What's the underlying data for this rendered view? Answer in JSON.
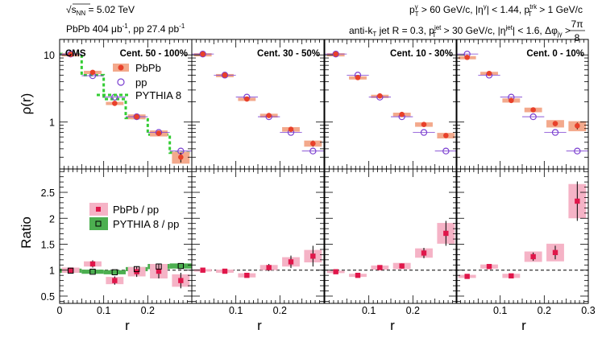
{
  "header": {
    "energy": {
      "sqrt": "√",
      "s": "s",
      "sub": "NN",
      "rest": " = 5.02 TeV"
    },
    "lumi": {
      "a": "PbPb 404 μb",
      "b": "-1",
      "c": ", pp 27.4 pb",
      "d": "-1"
    },
    "photon_cut": {
      "a": "p",
      "a_sup": "γ",
      "a_sub": "T",
      "b": " > 60 GeV/c, |η",
      "b_sup": "γ",
      "c": "| < 1.44, p",
      "c_sup": "trk",
      "c_sub": "T",
      "d": " > 1 GeV/c"
    },
    "jet_cut": {
      "a": "anti-k",
      "a_sub": "T",
      "b": " jet R = 0.3, p",
      "b_sup": "jet",
      "b_sub": "T",
      "c": " > 30 GeV/c, |η",
      "c_sup": "jet",
      "d": "| < 1.6, Δφ",
      "d_sub": "jγ",
      "e": " > ",
      "frac_num": "7π",
      "frac_den": "8"
    }
  },
  "cms_label": "CMS",
  "axis_labels": {
    "top_y": "ρ(r)",
    "bottom_y": "Ratio",
    "x": "r"
  },
  "legend_top": {
    "pbpb": "PbPb",
    "pp": "pp",
    "pythia": "PYTHIA 8"
  },
  "legend_bottom": {
    "pbpb_pp": "PbPb / pp",
    "pythia_pp": "PYTHIA 8 / pp"
  },
  "colors": {
    "pbpb": "#e8402a",
    "pbpb_band": "#f3a98c",
    "pp": "#7b3fd0",
    "pythia": "#33cc33",
    "ratio": "#e0164a",
    "ratio_band": "#f5b3c6",
    "pythia_ratio_band": "#4caf50"
  },
  "chart_data": {
    "type": "scatter",
    "x_label": "r",
    "x_range": [
      0,
      0.3
    ],
    "r_centers": [
      0.025,
      0.075,
      0.125,
      0.175,
      0.225,
      0.275
    ],
    "top_ylabel": "ρ(r)",
    "top_yscale": "log",
    "top_ylim": [
      0.2,
      17
    ],
    "top_yticks": [
      "1",
      "10"
    ],
    "bottom_ylabel": "Ratio",
    "bottom_ylim": [
      0.36,
      2.95
    ],
    "bottom_yticks": [
      "0.5",
      "1",
      "1.5",
      "2",
      "2.5"
    ],
    "x_tick_labels": {
      "panel1": [
        "0",
        "0.1",
        "0.2"
      ],
      "panel2": [
        "0.1",
        "0.2"
      ],
      "panel3": [
        "0.1",
        "0.2"
      ],
      "panel4": [
        "0.1",
        "0.2",
        "0.3"
      ]
    },
    "pythia_rho": [
      10.3,
      5.0,
      2.2,
      1.15,
      0.65,
      0.35
    ],
    "pythia_ratio": [
      0.99,
      0.97,
      0.96,
      1.02,
      1.07,
      1.08
    ],
    "pythia_ratio_err": [
      0.04,
      0.04,
      0.04,
      0.04,
      0.05,
      0.05
    ],
    "panels": [
      {
        "label": "Cent. 50 - 100%",
        "pbpb": [
          10.2,
          5.5,
          1.9,
          1.2,
          0.68,
          0.3
        ],
        "pbpb_stat": [
          0.3,
          0.2,
          0.1,
          0.08,
          0.06,
          0.05
        ],
        "pbpb_sys": [
          0.4,
          0.3,
          0.1,
          0.1,
          0.07,
          0.06
        ],
        "pp": [
          10.3,
          4.9,
          2.35,
          1.2,
          0.7,
          0.37
        ],
        "ratio": [
          1.0,
          1.12,
          0.8,
          0.97,
          0.98,
          0.8
        ],
        "ratio_stat": [
          0.05,
          0.07,
          0.08,
          0.1,
          0.14,
          0.15
        ],
        "ratio_sys": [
          0.05,
          0.05,
          0.07,
          0.09,
          0.14,
          0.12
        ]
      },
      {
        "label": "Cent. 30 - 50%",
        "pbpb": [
          10.3,
          5.0,
          2.2,
          1.25,
          0.78,
          0.48
        ],
        "pbpb_stat": [
          0.3,
          0.2,
          0.1,
          0.07,
          0.06,
          0.05
        ],
        "pbpb_sys": [
          0.3,
          0.2,
          0.1,
          0.08,
          0.06,
          0.05
        ],
        "pp": [
          10.3,
          5.0,
          2.35,
          1.2,
          0.7,
          0.37
        ],
        "ratio": [
          1.0,
          0.98,
          0.9,
          1.05,
          1.16,
          1.27
        ],
        "ratio_stat": [
          0.03,
          0.03,
          0.04,
          0.07,
          0.12,
          0.2
        ],
        "ratio_sys": [
          0.02,
          0.03,
          0.04,
          0.05,
          0.09,
          0.12
        ]
      },
      {
        "label": "Cent. 10 - 30%",
        "pbpb": [
          10.3,
          4.6,
          2.45,
          1.3,
          0.92,
          0.63
        ],
        "pbpb_stat": [
          0.3,
          0.2,
          0.1,
          0.07,
          0.06,
          0.05
        ],
        "pbpb_sys": [
          0.3,
          0.2,
          0.1,
          0.08,
          0.07,
          0.06
        ],
        "pp": [
          10.3,
          5.0,
          2.35,
          1.2,
          0.7,
          0.37
        ],
        "ratio": [
          0.97,
          0.9,
          1.05,
          1.08,
          1.33,
          1.71
        ],
        "ratio_stat": [
          0.02,
          0.03,
          0.03,
          0.05,
          0.1,
          0.24
        ],
        "ratio_sys": [
          0.02,
          0.03,
          0.04,
          0.06,
          0.09,
          0.2
        ]
      },
      {
        "label": "Cent. 0 - 10%",
        "pbpb": [
          9.2,
          5.3,
          2.1,
          1.52,
          0.95,
          0.88
        ],
        "pbpb_stat": [
          0.3,
          0.2,
          0.1,
          0.1,
          0.08,
          0.1
        ],
        "pbpb_sys": [
          0.4,
          0.3,
          0.15,
          0.12,
          0.12,
          0.15
        ],
        "pp": [
          10.3,
          5.0,
          2.35,
          1.2,
          0.7,
          0.37
        ],
        "ratio": [
          0.88,
          1.07,
          0.89,
          1.26,
          1.34,
          2.33
        ],
        "ratio_stat": [
          0.03,
          0.04,
          0.04,
          0.08,
          0.13,
          0.38
        ],
        "ratio_sys": [
          0.03,
          0.04,
          0.04,
          0.1,
          0.17,
          0.33
        ]
      }
    ]
  }
}
